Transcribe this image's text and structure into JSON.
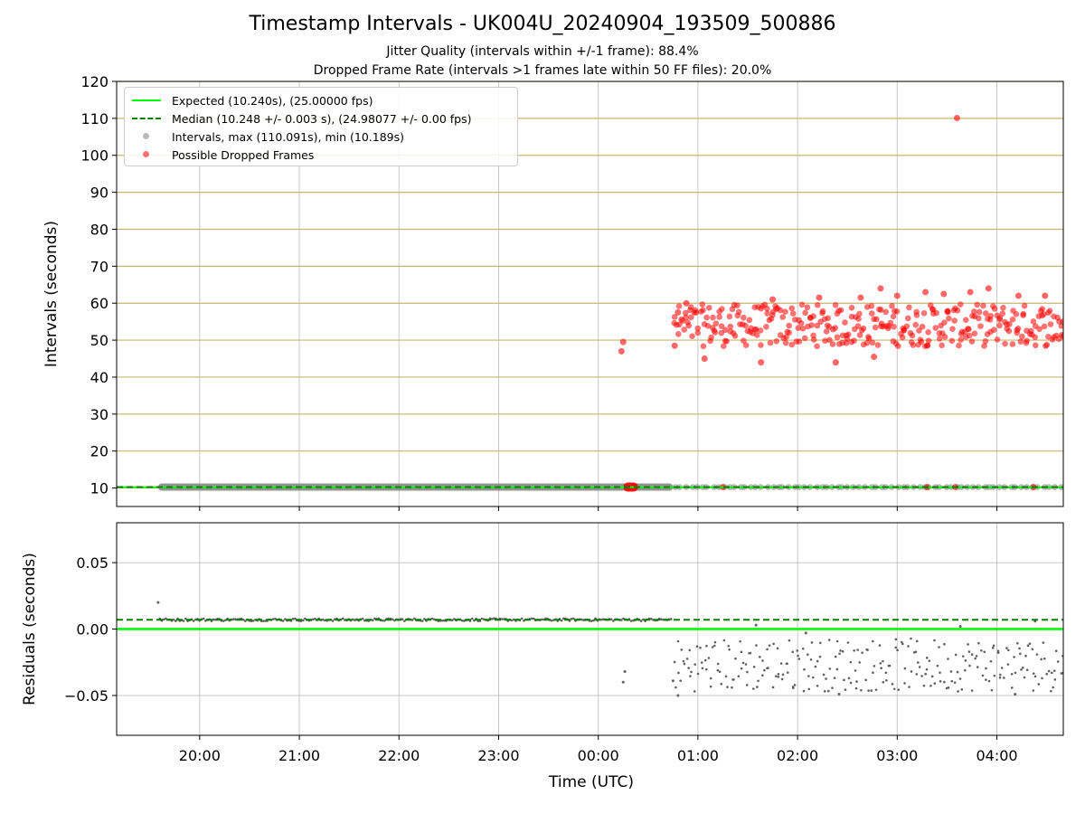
{
  "figure": {
    "title": "Timestamp Intervals - UK004U_20240904_193509_500886",
    "subtitle1": "Jitter Quality (intervals within +/-1 frame): 88.4%",
    "subtitle2": "Dropped Frame Rate (intervals >1 frames late within 50 FF files): 20.0%"
  },
  "legend": {
    "expected": "Expected (10.240s), (25.00000 fps)",
    "median": "Median (10.248 +/- 0.003 s), (24.98077 +/- 0.00 fps)",
    "intervals": "Intervals, max (110.091s), min (10.189s)",
    "dropped": "Possible Dropped Frames"
  },
  "colors": {
    "expected": "#00ff00",
    "median": "#008000",
    "intervals": "#808080",
    "dropped": "#ff0000",
    "hgrid_top": "#c8b66e",
    "grid": "#b0b0b0"
  },
  "chart_data": [
    {
      "type": "scatter",
      "ylabel": "Intervals (seconds)",
      "ylim": [
        5,
        120
      ],
      "yticks": [
        10,
        20,
        30,
        40,
        50,
        60,
        70,
        80,
        90,
        100,
        110,
        120
      ],
      "xlim": [
        "19:10",
        "04:40"
      ],
      "grid": true,
      "legend_position": "top-left",
      "expected_line": 10.24,
      "median_line": 10.248,
      "series": [
        {
          "name": "Intervals, max (110.091s), min (10.189s)",
          "color": "#808080",
          "segments": [
            {
              "x_start": "19:35",
              "x_end": "00:45",
              "y": 10.248,
              "note_type": "dense"
            },
            {
              "x_start": "00:45",
              "x_end": "04:40",
              "y": 10.24,
              "note_type": "sparse"
            }
          ]
        },
        {
          "name": "Possible Dropped Frames",
          "color": "#ff0000",
          "points_clusters": [
            {
              "x_start": "00:15",
              "x_end": "00:24",
              "y": 10.25
            },
            {
              "x_start": "00:45",
              "x_end": "04:40",
              "y_min": 44,
              "y_max": 64
            }
          ],
          "points": [
            {
              "x": "00:14",
              "y": 47
            },
            {
              "x": "00:15",
              "y": 49.5
            },
            {
              "x": "00:46",
              "y": 48.5
            },
            {
              "x": "00:48",
              "y": 57.5
            },
            {
              "x": "00:53",
              "y": 60
            },
            {
              "x": "01:04",
              "y": 45
            },
            {
              "x": "01:38",
              "y": 44
            },
            {
              "x": "01:45",
              "y": 61
            },
            {
              "x": "02:13",
              "y": 61.5
            },
            {
              "x": "02:23",
              "y": 44
            },
            {
              "x": "02:38",
              "y": 61.5
            },
            {
              "x": "02:46",
              "y": 45.5
            },
            {
              "x": "02:50",
              "y": 64
            },
            {
              "x": "03:00",
              "y": 62
            },
            {
              "x": "03:17",
              "y": 63
            },
            {
              "x": "03:28",
              "y": 62.5
            },
            {
              "x": "03:36",
              "y": 110.091
            },
            {
              "x": "03:44",
              "y": 63
            },
            {
              "x": "03:55",
              "y": 64
            },
            {
              "x": "04:13",
              "y": 62
            },
            {
              "x": "04:29",
              "y": 62
            },
            {
              "x": "04:40",
              "y": 51
            },
            {
              "x": "03:35",
              "y": 10.25
            },
            {
              "x": "03:18",
              "y": 10.25
            },
            {
              "x": "04:22",
              "y": 10.25
            },
            {
              "x": "01:15",
              "y": 10.25
            }
          ]
        }
      ]
    },
    {
      "type": "scatter",
      "ylabel": "Residuals (seconds)",
      "xlabel": "Time (UTC)",
      "ylim": [
        -0.08,
        0.08
      ],
      "yticks": [
        -0.05,
        0.0,
        0.05
      ],
      "ytick_labels": [
        "−0.05",
        "0.00",
        "0.05"
      ],
      "xticks": [
        "20:00",
        "21:00",
        "22:00",
        "23:00",
        "00:00",
        "01:00",
        "02:00",
        "03:00",
        "04:00"
      ],
      "xlim": [
        "19:10",
        "04:40"
      ],
      "grid": true,
      "expected_line": 0.0,
      "median_line": 0.007,
      "series": [
        {
          "name": "Residuals",
          "color": "#606060",
          "segments": [
            {
              "x_start": "19:36",
              "x_end": "00:45",
              "y": 0.007,
              "spread": 0.001
            }
          ],
          "cloud": {
            "x_start": "00:45",
            "x_end": "04:40",
            "y_min": -0.05,
            "y_max": 0.003
          },
          "points": [
            {
              "x": "19:35",
              "y": 0.02
            },
            {
              "x": "00:15",
              "y": -0.04
            },
            {
              "x": "00:16",
              "y": -0.032
            },
            {
              "x": "00:45",
              "y": -0.039
            },
            {
              "x": "00:48",
              "y": -0.05
            },
            {
              "x": "01:35",
              "y": 0.003
            },
            {
              "x": "02:05",
              "y": -0.003
            },
            {
              "x": "02:25",
              "y": -0.049
            },
            {
              "x": "03:38",
              "y": 0.002
            },
            {
              "x": "04:11",
              "y": -0.049
            },
            {
              "x": "04:23",
              "y": 0.006
            }
          ]
        }
      ]
    }
  ]
}
